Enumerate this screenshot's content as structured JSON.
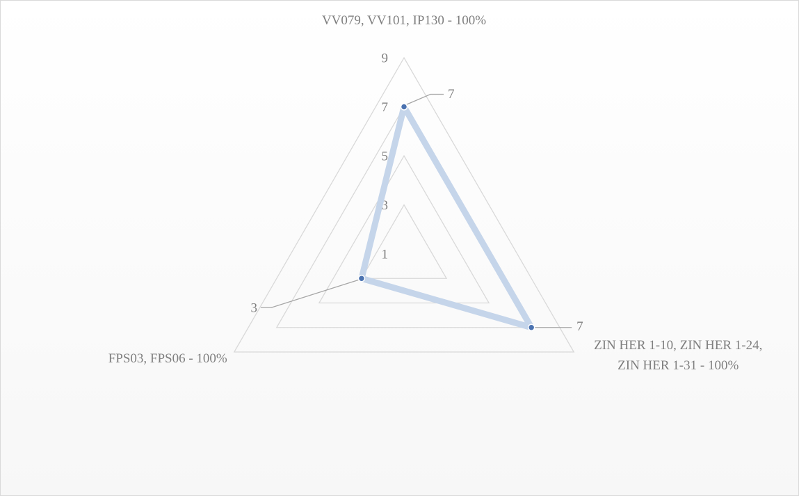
{
  "chart_data": {
    "type": "radar",
    "categories": [
      "VV079, VV101, IP130 - 100%",
      "ZIN HER 1-10, ZIN HER 1-24, ZIN HER 1-31 - 100%",
      "FPS03, FPS06 - 100%"
    ],
    "series": [
      {
        "color": "#c5d5ea",
        "marker_color": "#4a72b0",
        "values": [
          7,
          7,
          3
        ]
      }
    ],
    "rlim": [
      1,
      9
    ],
    "rticks": [
      1,
      3,
      5,
      7,
      9
    ],
    "grid": true
  }
}
